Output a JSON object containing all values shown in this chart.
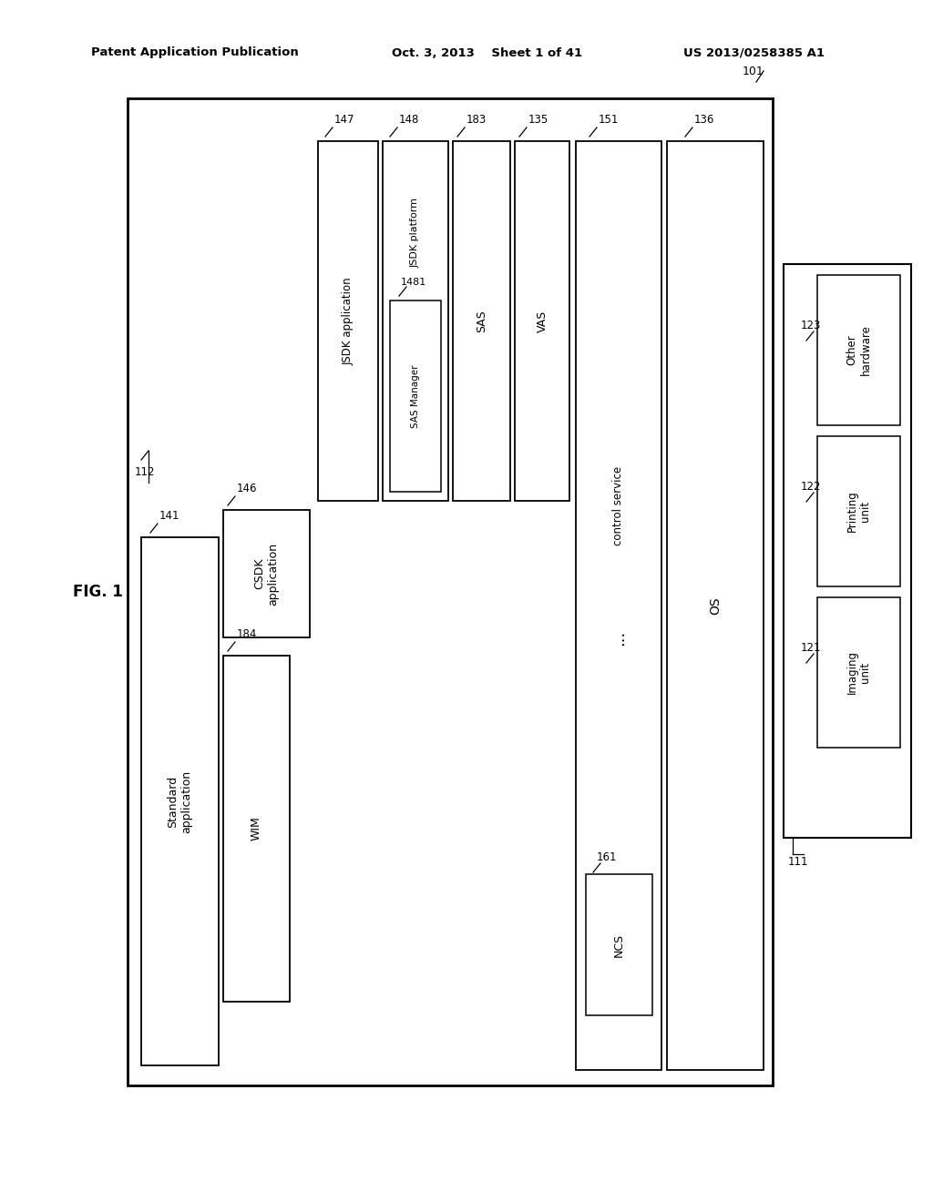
{
  "bg_color": "#ffffff",
  "header_left": "Patent Application Publication",
  "header_center": "Oct. 3, 2013    Sheet 1 of 41",
  "header_right": "US 2013/0258385 A1",
  "fig_label": "FIG. 1"
}
